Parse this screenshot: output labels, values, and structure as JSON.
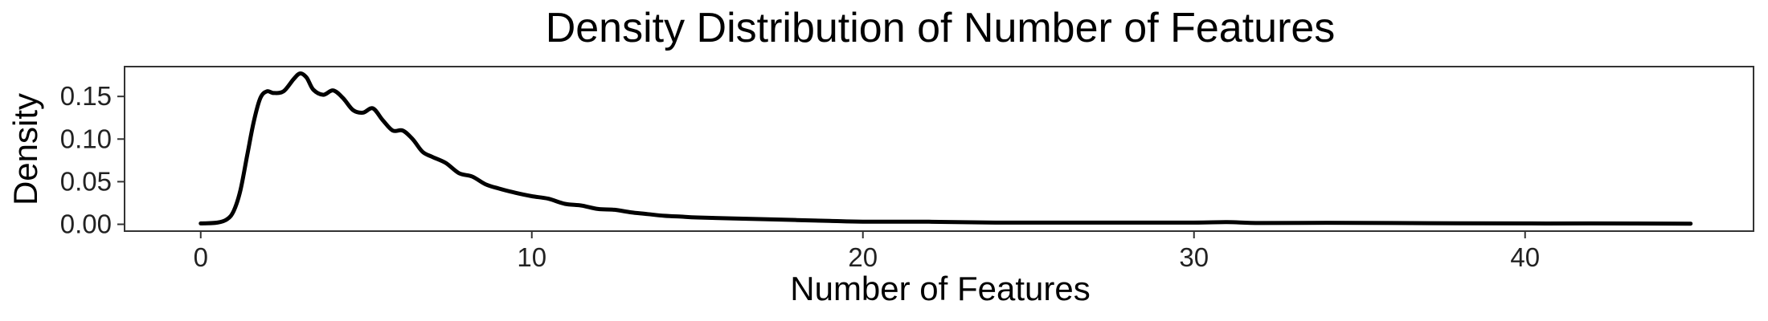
{
  "chart_data": {
    "type": "line",
    "title": "Density Distribution of Number of Features",
    "xlabel": "Number of Features",
    "ylabel": "Density",
    "xlim": [
      -2.3,
      46.9
    ],
    "ylim": [
      -0.008,
      0.185
    ],
    "x_ticks": [
      0,
      10,
      20,
      30,
      40
    ],
    "y_ticks": [
      0.0,
      0.05,
      0.1,
      0.15
    ],
    "x_tick_labels": [
      "0",
      "10",
      "20",
      "30",
      "40"
    ],
    "y_tick_labels": [
      "0.00",
      "0.05",
      "0.10",
      "0.15"
    ],
    "grid": false,
    "legend": "none",
    "line_color": "#000000",
    "series": [
      {
        "x": [
          0,
          0.5,
          0.8,
          1.0,
          1.2,
          1.4,
          1.6,
          1.8,
          2.0,
          2.2,
          2.5,
          2.8,
          3.0,
          3.2,
          3.4,
          3.7,
          4.0,
          4.3,
          4.6,
          4.9,
          5.2,
          5.5,
          5.8,
          6.1,
          6.4,
          6.7,
          7.0,
          7.4,
          7.8,
          8.2,
          8.6,
          9.0,
          9.5,
          10.0,
          10.5,
          11.0,
          11.5,
          12.0,
          12.5,
          13.0,
          13.5,
          14.0,
          14.5,
          15.0,
          16.0,
          17.0,
          18.0,
          19.0,
          20.0,
          22.0,
          24.0,
          26.0,
          28.0,
          30.0,
          31.0,
          32.0,
          34.0,
          36.0,
          38.0,
          40.0,
          42.0,
          45.0
        ],
        "y": [
          0.001,
          0.002,
          0.006,
          0.016,
          0.04,
          0.08,
          0.12,
          0.148,
          0.156,
          0.154,
          0.156,
          0.17,
          0.177,
          0.172,
          0.158,
          0.152,
          0.157,
          0.148,
          0.134,
          0.131,
          0.136,
          0.122,
          0.11,
          0.11,
          0.1,
          0.085,
          0.079,
          0.072,
          0.06,
          0.056,
          0.047,
          0.042,
          0.037,
          0.033,
          0.03,
          0.024,
          0.022,
          0.018,
          0.017,
          0.014,
          0.012,
          0.01,
          0.009,
          0.008,
          0.007,
          0.006,
          0.005,
          0.004,
          0.003,
          0.003,
          0.002,
          0.002,
          0.002,
          0.002,
          0.0025,
          0.0015,
          0.0018,
          0.0015,
          0.0012,
          0.001,
          0.001,
          0.0008
        ]
      }
    ]
  }
}
